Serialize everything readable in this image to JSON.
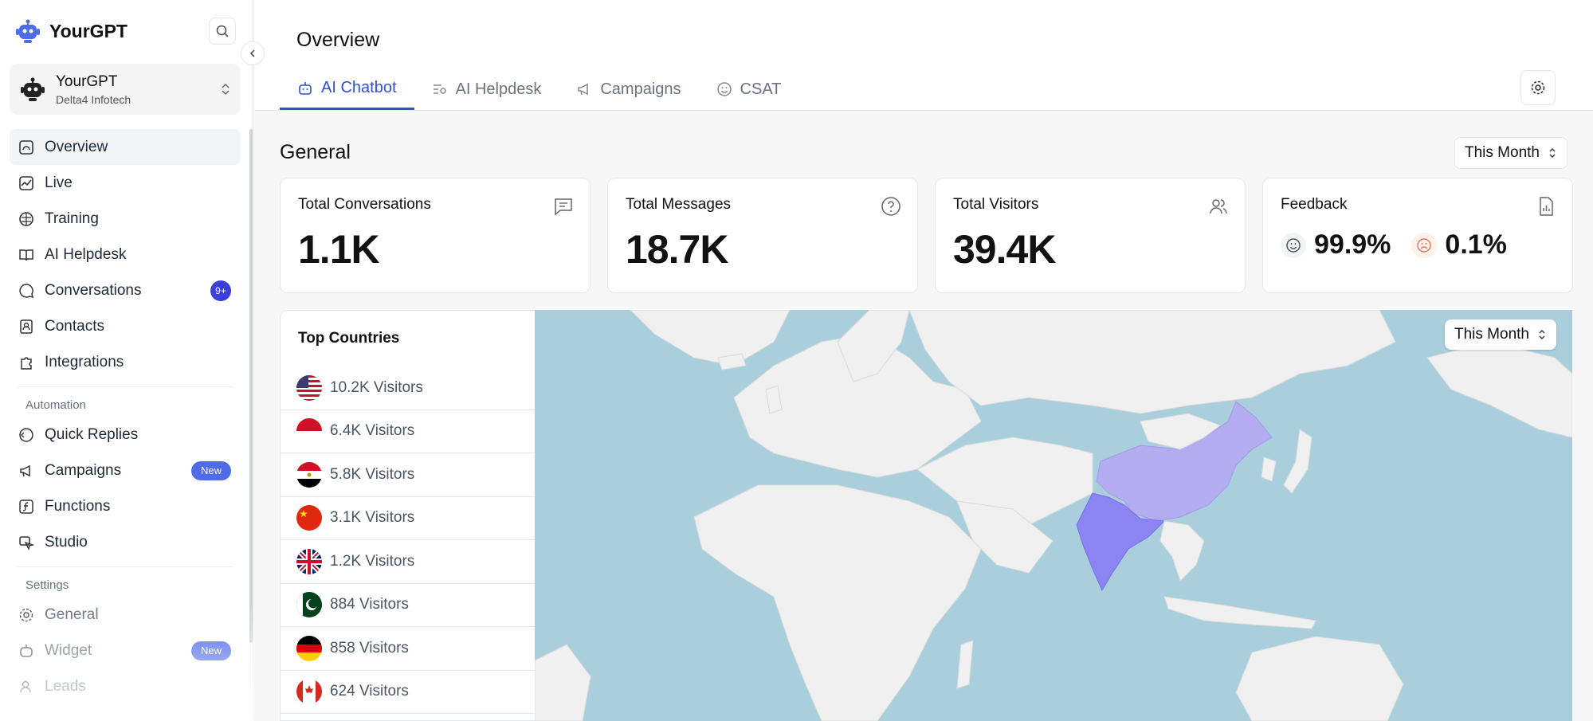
{
  "app": {
    "name": "YourGPT"
  },
  "workspace": {
    "name": "YourGPT",
    "org": "Delta4 Infotech"
  },
  "sidebar": {
    "items": [
      {
        "label": "Overview",
        "icon": "dashboard-icon"
      },
      {
        "label": "Live",
        "icon": "activity-icon"
      },
      {
        "label": "Training",
        "icon": "brain-icon"
      },
      {
        "label": "AI Helpdesk",
        "icon": "book-icon"
      },
      {
        "label": "Conversations",
        "icon": "chat-icon",
        "badge": "9+"
      },
      {
        "label": "Contacts",
        "icon": "contacts-icon"
      },
      {
        "label": "Integrations",
        "icon": "puzzle-icon"
      }
    ],
    "automation_label": "Automation",
    "automation_items": [
      {
        "label": "Quick Replies",
        "icon": "reply-icon"
      },
      {
        "label": "Campaigns",
        "icon": "megaphone-icon",
        "badge": "New"
      },
      {
        "label": "Functions",
        "icon": "function-icon"
      },
      {
        "label": "Studio",
        "icon": "studio-icon"
      }
    ],
    "settings_label": "Settings",
    "settings_items": [
      {
        "label": "General",
        "icon": "gear-icon"
      },
      {
        "label": "Widget",
        "icon": "widget-icon",
        "badge": "New"
      },
      {
        "label": "Leads",
        "icon": "user-icon"
      }
    ]
  },
  "header": {
    "title": "Overview",
    "tabs": [
      {
        "label": "AI Chatbot",
        "active": true
      },
      {
        "label": "AI Helpdesk"
      },
      {
        "label": "Campaigns"
      },
      {
        "label": "CSAT"
      }
    ]
  },
  "general": {
    "title": "General",
    "period": "This Month",
    "stats": [
      {
        "label": "Total Conversations",
        "value": "1.1K",
        "icon": "message-square-icon"
      },
      {
        "label": "Total Messages",
        "value": "18.7K",
        "icon": "help-circle-icon"
      },
      {
        "label": "Total Visitors",
        "value": "39.4K",
        "icon": "users-icon"
      }
    ],
    "feedback": {
      "label": "Feedback",
      "positive": "99.9%",
      "negative": "0.1%",
      "icon": "report-icon"
    }
  },
  "countries": {
    "title": "Top Countries",
    "period": "This Month",
    "rows": [
      {
        "flag": "us",
        "value": "10.2K Visitors"
      },
      {
        "flag": "id",
        "value": "6.4K Visitors"
      },
      {
        "flag": "eg",
        "value": "5.8K Visitors"
      },
      {
        "flag": "cn",
        "value": "3.1K Visitors"
      },
      {
        "flag": "gb",
        "value": "1.2K Visitors"
      },
      {
        "flag": "pk",
        "value": "884 Visitors"
      },
      {
        "flag": "de",
        "value": "858 Visitors"
      },
      {
        "flag": "ca",
        "value": "624 Visitors"
      }
    ]
  },
  "colors": {
    "accent": "#2f4fd8",
    "ocean": "#a9cfdd",
    "land": "#f0f0f0",
    "india": "#8b84f2",
    "china": "#b4acf0"
  }
}
